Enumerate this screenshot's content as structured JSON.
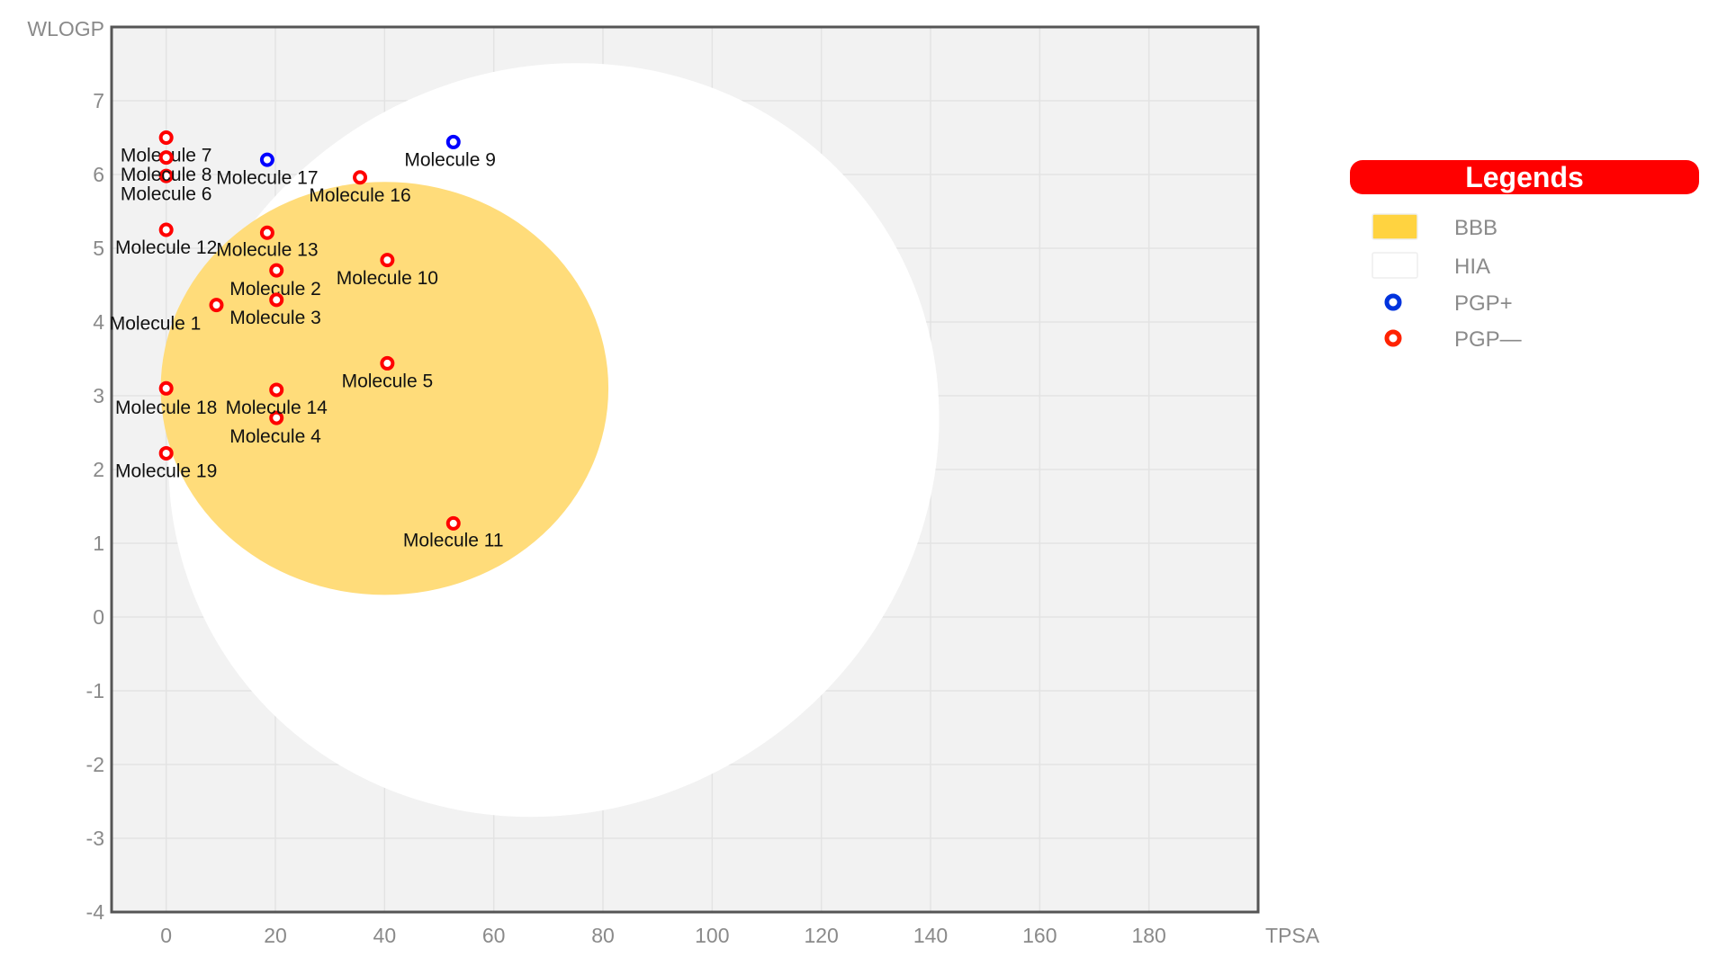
{
  "chart_data": {
    "type": "scatter",
    "xlabel": "TPSA",
    "ylabel": "WLOGP",
    "xlim": [
      -10,
      200
    ],
    "ylim": [
      -4,
      8
    ],
    "xticks": [
      0,
      20,
      40,
      60,
      80,
      100,
      120,
      140,
      160,
      180
    ],
    "yticks": [
      -4,
      -3,
      -2,
      -1,
      0,
      1,
      2,
      3,
      4,
      5,
      6,
      7
    ],
    "grid": true,
    "legend_placement": "right",
    "regions": [
      {
        "name": "HIA",
        "color": "#ffffff",
        "cx": 71,
        "cy": 2.4,
        "rx": 72,
        "ry": 5.0,
        "rotation": -35
      },
      {
        "name": "BBB",
        "color": "#ffdc7a",
        "cx": 40,
        "cy": 3.1,
        "rx": 41,
        "ry": 2.8,
        "rotation": 0
      }
    ],
    "points": [
      {
        "label": "Molecule 1",
        "x": 9.2,
        "y": 4.23,
        "pgp": "PGP-",
        "lx": -2,
        "ly": 3.98
      },
      {
        "label": "Molecule 2",
        "x": 20.2,
        "y": 4.7,
        "pgp": "PGP-",
        "lx": 20,
        "ly": 4.45
      },
      {
        "label": "Molecule 3",
        "x": 20.2,
        "y": 4.3,
        "pgp": "PGP-",
        "lx": 20,
        "ly": 4.06
      },
      {
        "label": "Molecule 4",
        "x": 20.2,
        "y": 2.7,
        "pgp": "PGP-",
        "lx": 20,
        "ly": 2.45
      },
      {
        "label": "Molecule 5",
        "x": 40.5,
        "y": 3.44,
        "pgp": "PGP-",
        "lx": 40.5,
        "ly": 3.2
      },
      {
        "label": "Molecule 6",
        "x": 0,
        "y": 5.98,
        "pgp": "PGP-",
        "lx": 0,
        "ly": 5.74
      },
      {
        "label": "Molecule 7",
        "x": 0,
        "y": 6.5,
        "pgp": "PGP-",
        "lx": 0,
        "ly": 6.26
      },
      {
        "label": "Molecule 8",
        "x": 0,
        "y": 6.23,
        "pgp": "PGP-",
        "lx": 0,
        "ly": 6.0
      },
      {
        "label": "Molecule 9",
        "x": 52.6,
        "y": 6.44,
        "pgp": "PGP+",
        "lx": 52,
        "ly": 6.2
      },
      {
        "label": "Molecule 10",
        "x": 40.5,
        "y": 4.84,
        "pgp": "PGP-",
        "lx": 40.5,
        "ly": 4.6
      },
      {
        "label": "Molecule 11",
        "x": 52.6,
        "y": 1.27,
        "pgp": "PGP-",
        "lx": 52.6,
        "ly": 1.04
      },
      {
        "label": "Molecule 12",
        "x": 0,
        "y": 5.25,
        "pgp": "PGP-",
        "lx": 0,
        "ly": 5.01
      },
      {
        "label": "Molecule 13",
        "x": 18.5,
        "y": 5.21,
        "pgp": "PGP-",
        "lx": 18.5,
        "ly": 4.98
      },
      {
        "label": "Molecule 14",
        "x": 20.2,
        "y": 3.08,
        "pgp": "PGP-",
        "lx": 20.2,
        "ly": 2.84
      },
      {
        "label": "Molecule 16",
        "x": 35.5,
        "y": 5.96,
        "pgp": "PGP-",
        "lx": 35.5,
        "ly": 5.72
      },
      {
        "label": "Molecule 17",
        "x": 18.5,
        "y": 6.2,
        "pgp": "PGP+",
        "lx": 18.5,
        "ly": 5.96
      },
      {
        "label": "Molecule 18",
        "x": 0,
        "y": 3.1,
        "pgp": "PGP-",
        "lx": 0,
        "ly": 2.84
      },
      {
        "label": "Molecule 19",
        "x": 0,
        "y": 2.22,
        "pgp": "PGP-",
        "lx": 0,
        "ly": 1.98
      }
    ]
  },
  "legend": {
    "title": "Legends",
    "title_color": "#ff0000",
    "items": [
      {
        "label": "BBB",
        "kind": "swatch",
        "color": "#ffd340"
      },
      {
        "label": "HIA",
        "kind": "swatch",
        "color": "#ffffff"
      },
      {
        "label": "PGP+",
        "kind": "circle",
        "color": "#0033dd"
      },
      {
        "label": "PGP—",
        "kind": "circle",
        "color": "#ff2200"
      }
    ]
  },
  "colors": {
    "plot_background": "#f2f2f2",
    "grid": "#e3e3e3",
    "axis": "#555555",
    "pgp_plus": "#0000ff",
    "pgp_minus": "#ff0000"
  }
}
